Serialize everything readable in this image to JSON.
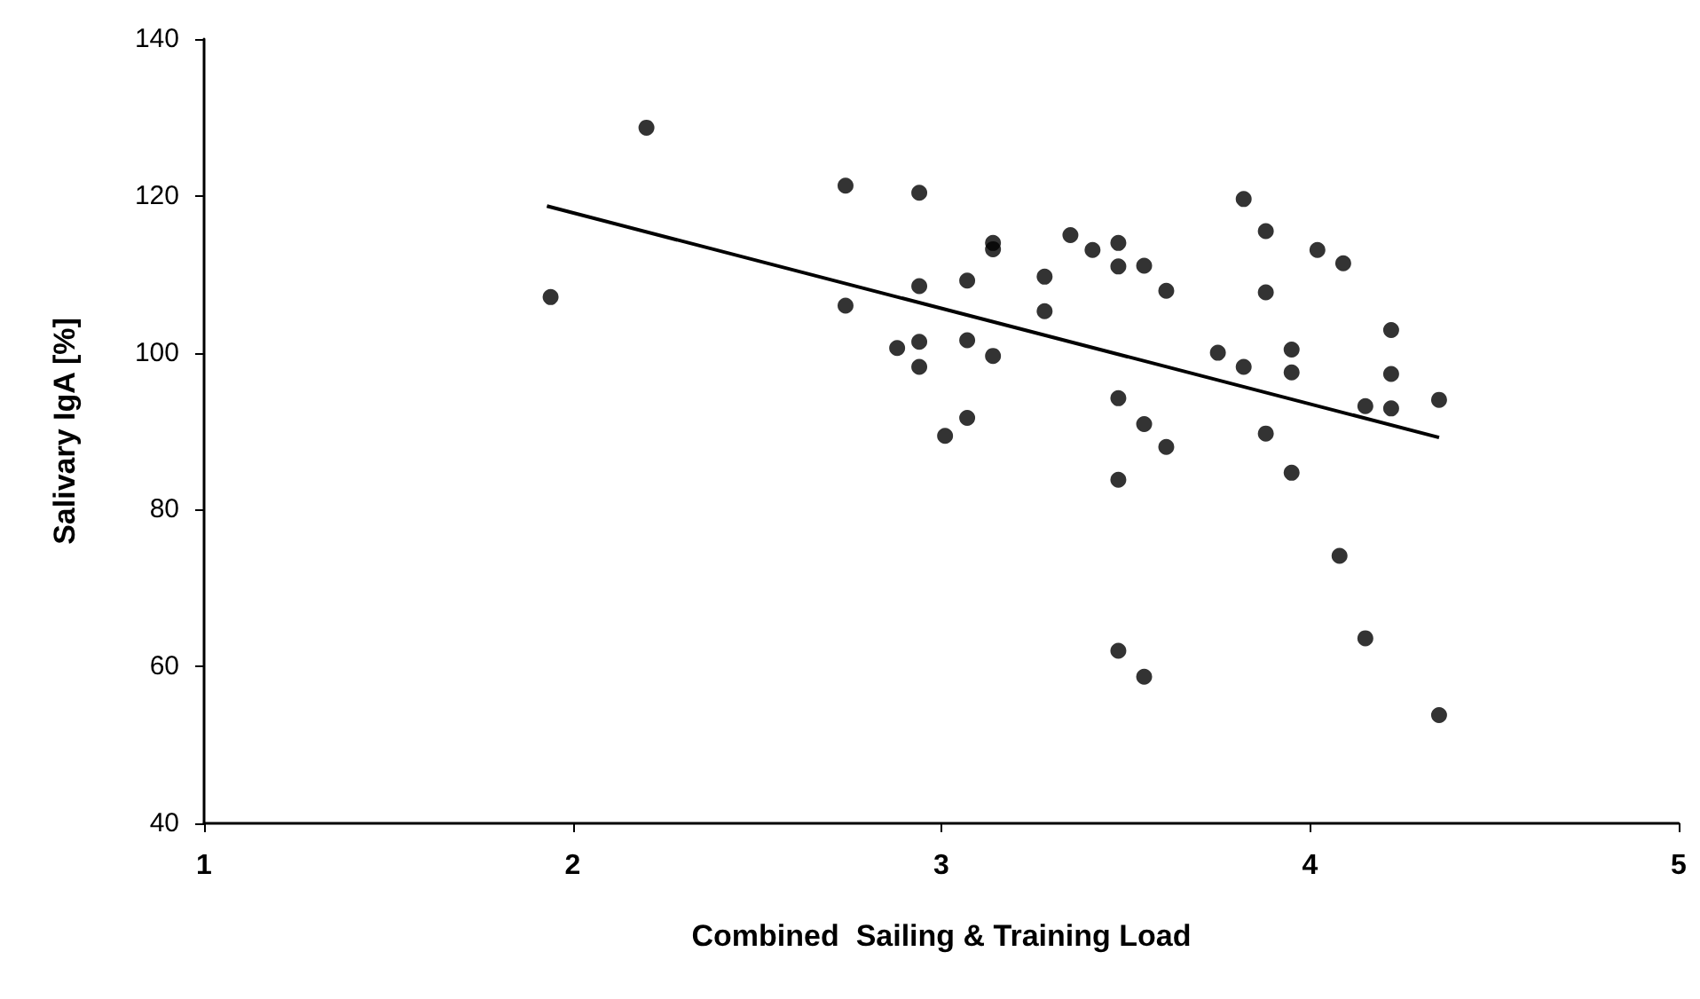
{
  "chart_data": {
    "type": "scatter",
    "xlabel": "Combined  Sailing & Training Load",
    "ylabel": "Salivary IgA [%]",
    "xlim": [
      1,
      5
    ],
    "xticks": [
      1,
      2,
      3,
      4,
      5
    ],
    "ylim": [
      40,
      140
    ],
    "yticks": [
      40,
      60,
      80,
      100,
      120,
      140
    ],
    "grid": false,
    "marker": "circle",
    "series": [
      {
        "color": "#000000",
        "x": [
          1.94,
          2.2,
          2.74,
          2.94,
          3.14,
          3.14,
          2.94,
          3.07,
          2.74,
          2.88,
          2.94,
          2.94,
          3.07,
          3.14,
          3.07,
          3.01,
          3.28,
          3.28,
          3.35,
          3.41,
          3.48,
          3.48,
          3.55,
          3.61,
          3.82,
          3.88,
          4.02,
          4.09,
          3.88,
          3.75,
          3.82,
          3.95,
          3.95,
          4.22,
          4.22,
          4.15,
          4.22,
          4.35,
          3.48,
          3.55,
          3.61,
          3.48,
          3.88,
          3.95,
          4.08,
          3.48,
          3.55,
          4.15,
          4.35
        ],
        "values": [
          107.1,
          128.7,
          121.3,
          120.4,
          114.0,
          113.2,
          108.5,
          109.2,
          106.0,
          100.6,
          101.4,
          98.2,
          101.6,
          99.6,
          91.7,
          89.4,
          109.7,
          105.3,
          115.0,
          113.1,
          114.0,
          111.0,
          111.1,
          107.9,
          119.6,
          115.5,
          113.1,
          111.4,
          107.7,
          100.0,
          98.2,
          100.4,
          97.5,
          102.9,
          97.3,
          93.2,
          92.9,
          94.0,
          94.2,
          90.9,
          88.0,
          83.8,
          89.7,
          84.7,
          74.1,
          62.0,
          58.7,
          63.6,
          53.8
        ]
      },
      {
        "type": "line",
        "color": "#000000",
        "marker": "none",
        "line_style": "solid",
        "x": [
          1.93,
          4.35
        ],
        "values": [
          118.7,
          89.2
        ]
      }
    ]
  }
}
